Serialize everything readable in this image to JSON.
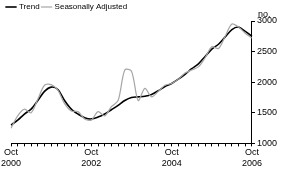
{
  "chart_data": {
    "type": "line",
    "ylabel": "no.",
    "categories": [
      "Oct 2000",
      null,
      null,
      null,
      null,
      null,
      null,
      null,
      null,
      null,
      null,
      null,
      "Oct 2002",
      null,
      null,
      null,
      null,
      null,
      null,
      null,
      null,
      null,
      null,
      null,
      "Oct 2004",
      null,
      null,
      null,
      null,
      null,
      null,
      null,
      null,
      null,
      null,
      null,
      "Oct 2006"
    ],
    "series": [
      {
        "name": "Trend",
        "color": "#000000",
        "values": [
          1300,
          1380,
          1480,
          1560,
          1700,
          1850,
          1920,
          1880,
          1700,
          1560,
          1480,
          1420,
          1400,
          1430,
          1480,
          1550,
          1620,
          1700,
          1750,
          1760,
          1770,
          1800,
          1860,
          1930,
          1980,
          2050,
          2130,
          2220,
          2300,
          2420,
          2540,
          2620,
          2740,
          2860,
          2900,
          2830,
          2750
        ]
      },
      {
        "name": "Seasonally Adjusted",
        "color": "#a6a6a6",
        "values": [
          1250,
          1450,
          1560,
          1500,
          1720,
          1950,
          1960,
          1870,
          1650,
          1530,
          1520,
          1400,
          1380,
          1520,
          1450,
          1600,
          1700,
          2200,
          2180,
          1700,
          1900,
          1760,
          1850,
          1950,
          1980,
          2050,
          2150,
          2200,
          2250,
          2400,
          2580,
          2550,
          2750,
          2950,
          2900,
          2800,
          2720
        ]
      }
    ],
    "ylim": [
      1000,
      3000
    ],
    "yticks": [
      1000,
      1500,
      2000,
      2500,
      3000
    ],
    "grid": false,
    "legend": "top-left"
  }
}
